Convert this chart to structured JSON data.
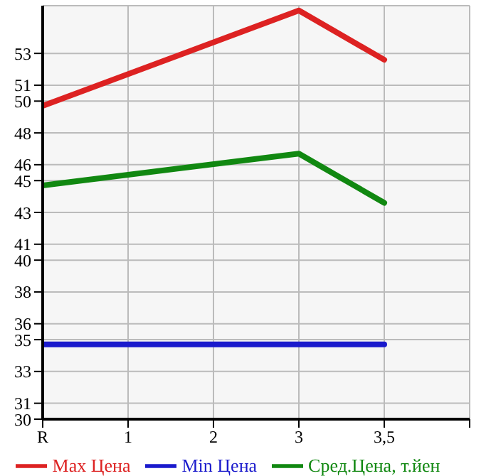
{
  "chart_data": {
    "type": "line",
    "categories": [
      "R",
      "1",
      "2",
      "3",
      "3,5",
      null
    ],
    "series": [
      {
        "name": "Max Цена",
        "color": "#dd2222",
        "values": [
          49.7,
          null,
          null,
          55.7,
          52.6,
          null
        ]
      },
      {
        "name": "Min Цена",
        "color": "#1a1acc",
        "values": [
          34.7,
          null,
          null,
          34.7,
          34.7,
          null
        ]
      },
      {
        "name": "Сред.Цена, т.йен",
        "color": "#118811",
        "values": [
          44.7,
          null,
          null,
          46.7,
          43.6,
          null
        ]
      }
    ],
    "ylim": [
      30,
      56
    ],
    "yticks": [
      30,
      31,
      33,
      35,
      36,
      38,
      40,
      41,
      43,
      45,
      46,
      48,
      50,
      51,
      53
    ],
    "grid": true,
    "legend": "bottom",
    "marker": "none",
    "line_style": "solid"
  }
}
